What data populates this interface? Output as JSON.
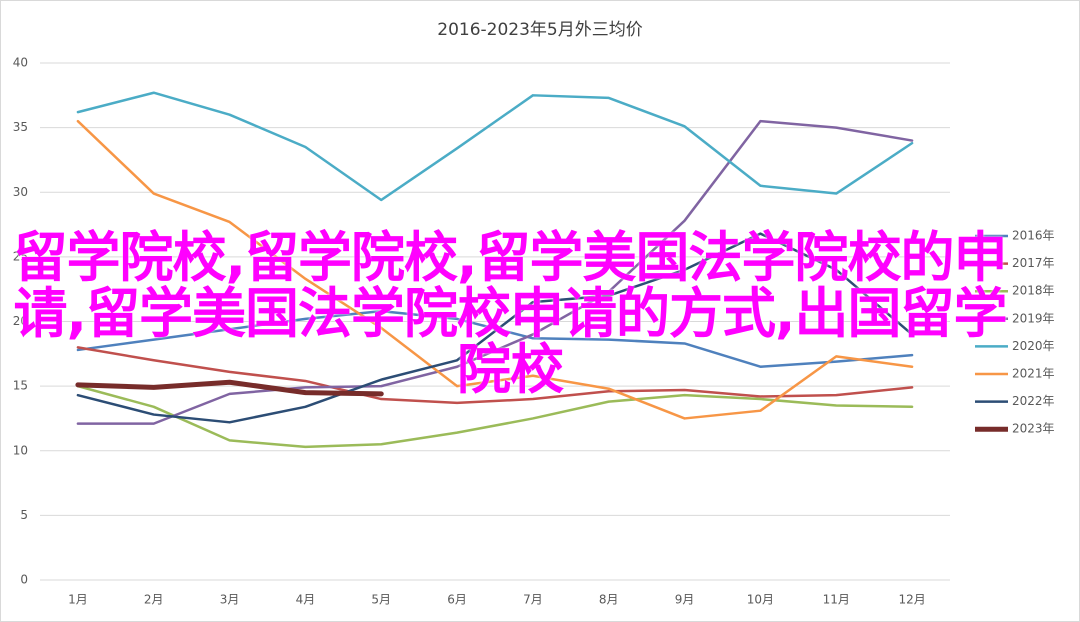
{
  "chart_data": {
    "type": "line",
    "title": "2016-2023年5月外三均价",
    "overlay_text": "留学院校,留学院校,留学美国法学院校的申请,留学美国法学院校申请的方式,出国留学院校",
    "categories": [
      "1月",
      "2月",
      "3月",
      "4月",
      "5月",
      "6月",
      "7月",
      "8月",
      "9月",
      "10月",
      "11月",
      "12月"
    ],
    "ylim": [
      0,
      40
    ],
    "yticks": [
      0,
      5,
      10,
      15,
      20,
      25,
      30,
      35,
      40
    ],
    "grid": true,
    "legend": "right",
    "series": [
      {
        "name": "2016年",
        "color": "#4f81bd",
        "values": [
          17.8,
          18.6,
          19.4,
          20.2,
          20.8,
          20.2,
          18.7,
          18.6,
          18.3,
          16.5,
          16.9,
          17.4
        ]
      },
      {
        "name": "2017年",
        "color": "#c0504d",
        "values": [
          18.0,
          17.0,
          16.1,
          15.4,
          14.0,
          13.7,
          14.0,
          14.6,
          14.7,
          14.2,
          14.3,
          14.9
        ]
      },
      {
        "name": "2018年",
        "color": "#9bbb59",
        "values": [
          15.0,
          13.4,
          10.8,
          10.3,
          10.5,
          11.4,
          12.5,
          13.8,
          14.3,
          14.0,
          13.5,
          13.4
        ]
      },
      {
        "name": "2019年",
        "color": "#8064a2",
        "values": [
          12.1,
          12.1,
          14.4,
          14.9,
          15.0,
          16.5,
          19.0,
          22.3,
          27.8,
          35.5,
          35.0,
          34.0
        ]
      },
      {
        "name": "2020年",
        "color": "#4bacc6",
        "values": [
          36.2,
          37.7,
          36.0,
          33.5,
          29.4,
          33.4,
          37.5,
          37.3,
          35.1,
          30.5,
          29.9,
          33.8
        ]
      },
      {
        "name": "2021年",
        "color": "#f79646",
        "values": [
          35.5,
          29.9,
          27.7,
          23.3,
          19.5,
          15.0,
          15.8,
          14.8,
          12.5,
          13.1,
          17.3,
          16.5
        ]
      },
      {
        "name": "2022年",
        "color": "#2c4d75",
        "values": [
          14.3,
          12.8,
          12.2,
          13.4,
          15.5,
          17.0,
          21.5,
          22.0,
          24.0,
          26.8,
          24.0,
          19.0
        ]
      },
      {
        "name": "2023年",
        "color": "#772c2a",
        "values": [
          15.1,
          14.9,
          15.3,
          14.5,
          14.4,
          null,
          null,
          null,
          null,
          null,
          null,
          null
        ]
      }
    ]
  }
}
